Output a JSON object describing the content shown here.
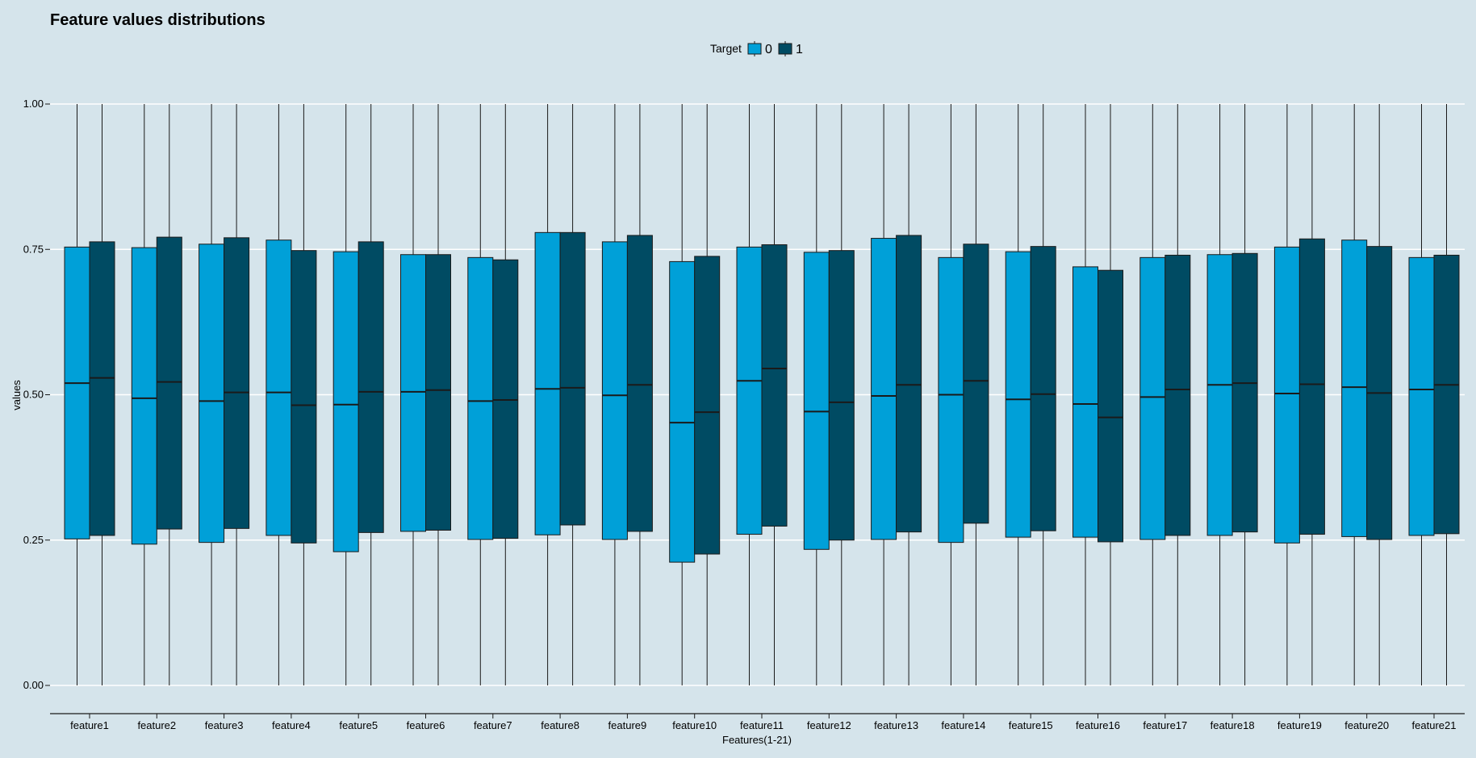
{
  "chart_data": {
    "type": "boxplot",
    "title": "Feature values distributions",
    "xlabel": "Features(1-21)",
    "ylabel": "values",
    "ylim": [
      0,
      1
    ],
    "yticks": [
      "0.00",
      "0.25",
      "0.50",
      "0.75",
      "1.00"
    ],
    "grid": "horizontal",
    "legend": {
      "title": "Target",
      "position": "top",
      "entries": [
        "0",
        "1"
      ]
    },
    "colors": {
      "background": "#d5e4eb",
      "0": "#00a0d8",
      "1": "#004b63",
      "grid": "#ffffff",
      "outline": "#1a1a1a"
    },
    "categories": [
      "feature1",
      "feature2",
      "feature3",
      "feature4",
      "feature5",
      "feature6",
      "feature7",
      "feature8",
      "feature9",
      "feature10",
      "feature11",
      "feature12",
      "feature13",
      "feature14",
      "feature15",
      "feature16",
      "feature17",
      "feature18",
      "feature19",
      "feature20",
      "feature21"
    ],
    "series": [
      {
        "name": "0",
        "min": [
          0,
          0,
          0,
          0,
          0,
          0,
          0,
          0,
          0,
          0,
          0,
          0,
          0,
          0,
          0,
          0,
          0,
          0,
          0,
          0,
          0
        ],
        "q1": [
          0.252,
          0.243,
          0.246,
          0.258,
          0.23,
          0.265,
          0.251,
          0.259,
          0.251,
          0.212,
          0.26,
          0.234,
          0.251,
          0.246,
          0.255,
          0.255,
          0.251,
          0.258,
          0.245,
          0.256,
          0.258
        ],
        "median": [
          0.52,
          0.494,
          0.489,
          0.504,
          0.483,
          0.505,
          0.489,
          0.51,
          0.499,
          0.452,
          0.524,
          0.471,
          0.498,
          0.5,
          0.492,
          0.484,
          0.496,
          0.517,
          0.502,
          0.513,
          0.509
        ],
        "q3": [
          0.754,
          0.753,
          0.759,
          0.766,
          0.746,
          0.741,
          0.736,
          0.779,
          0.763,
          0.729,
          0.754,
          0.745,
          0.769,
          0.736,
          0.746,
          0.72,
          0.736,
          0.741,
          0.754,
          0.766,
          0.736
        ],
        "max": [
          1,
          1,
          1,
          1,
          1,
          1,
          1,
          1,
          1,
          1,
          1,
          1,
          1,
          1,
          1,
          1,
          1,
          1,
          1,
          1,
          1
        ]
      },
      {
        "name": "1",
        "min": [
          0,
          0,
          0,
          0,
          0,
          0,
          0,
          0,
          0,
          0,
          0,
          0,
          0,
          0,
          0,
          0,
          0,
          0,
          0,
          0,
          0
        ],
        "q1": [
          0.258,
          0.269,
          0.27,
          0.245,
          0.263,
          0.267,
          0.253,
          0.276,
          0.265,
          0.226,
          0.274,
          0.25,
          0.264,
          0.279,
          0.266,
          0.247,
          0.258,
          0.264,
          0.26,
          0.251,
          0.261
        ],
        "median": [
          0.529,
          0.522,
          0.504,
          0.482,
          0.505,
          0.508,
          0.491,
          0.512,
          0.517,
          0.47,
          0.545,
          0.487,
          0.517,
          0.524,
          0.501,
          0.461,
          0.509,
          0.52,
          0.518,
          0.503,
          0.517
        ],
        "q3": [
          0.763,
          0.771,
          0.77,
          0.748,
          0.763,
          0.741,
          0.732,
          0.779,
          0.774,
          0.738,
          0.758,
          0.748,
          0.774,
          0.759,
          0.755,
          0.714,
          0.74,
          0.743,
          0.768,
          0.755,
          0.74
        ],
        "max": [
          1,
          1,
          1,
          1,
          1,
          1,
          1,
          1,
          1,
          1,
          1,
          1,
          1,
          1,
          1,
          1,
          1,
          1,
          1,
          1,
          1
        ]
      }
    ]
  }
}
